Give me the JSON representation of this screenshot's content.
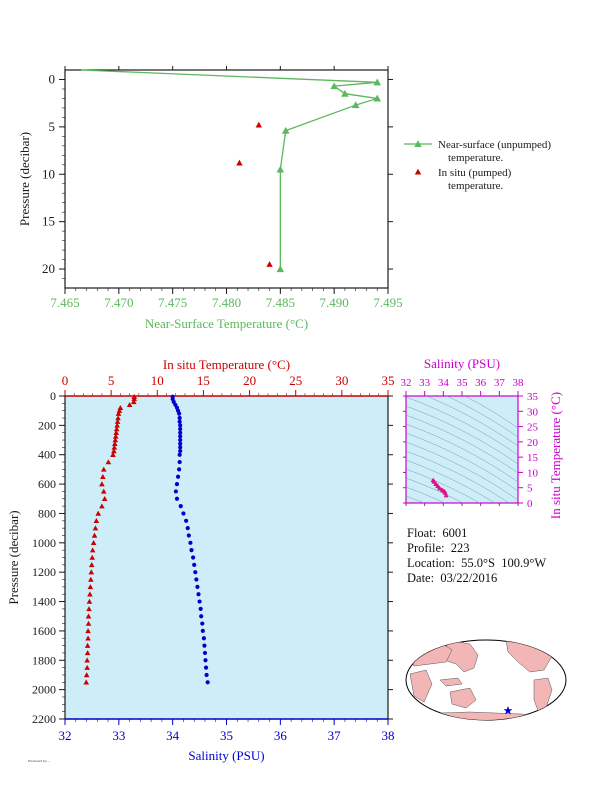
{
  "colors": {
    "green": "#5cb85c",
    "red": "#cc0000",
    "blue": "#0000cc",
    "magenta": "#cc00cc",
    "dark": "#1a1a1a",
    "panel": "#cdeef8"
  },
  "chart_data": [
    {
      "type": "line",
      "xlabel": "Near-Surface Temperature (°C)",
      "ylabel": "Pressure (decibar)",
      "xlim": [
        7.465,
        7.495
      ],
      "ylim": [
        22,
        -1
      ],
      "xticks": [
        "7.465",
        "7.470",
        "7.475",
        "7.480",
        "7.485",
        "7.490",
        "7.495"
      ],
      "yticks": [
        "0",
        "5",
        "10",
        "15",
        "20"
      ],
      "series": [
        {
          "name": "Near-surface (unpumped) temperature.",
          "x": [
            7.4665,
            7.494,
            7.49,
            7.491,
            7.494,
            7.492,
            7.4855,
            7.485,
            7.485
          ],
          "y": [
            -1.0,
            0.3,
            0.7,
            1.5,
            2.0,
            2.7,
            5.4,
            9.5,
            20.0
          ]
        },
        {
          "name": "In situ (pumped) temperature.",
          "x": [
            7.483,
            7.4812,
            7.484
          ],
          "y": [
            4.8,
            8.8,
            19.5
          ]
        }
      ],
      "legend": "right"
    },
    {
      "type": "scatter",
      "ylabel": "Pressure (decibar)",
      "top_axis_label": "In situ Temperature (°C)",
      "bottom_axis_label": "Salinity (PSU)",
      "temp_ticks": [
        "0",
        "5",
        "10",
        "15",
        "20",
        "25",
        "30",
        "35"
      ],
      "sal_ticks": [
        "32",
        "33",
        "34",
        "35",
        "36",
        "37",
        "38"
      ],
      "p_ticks": [
        "0",
        "200",
        "400",
        "600",
        "800",
        "1000",
        "1200",
        "1400",
        "1600",
        "1800",
        "2000",
        "2200"
      ],
      "temperature": {
        "pressure": [
          5,
          20,
          40,
          60,
          80,
          100,
          120,
          150,
          175,
          200,
          225,
          250,
          275,
          300,
          325,
          350,
          375,
          400,
          450,
          500,
          550,
          600,
          650,
          700,
          750,
          800,
          850,
          900,
          950,
          1000,
          1050,
          1100,
          1150,
          1200,
          1250,
          1300,
          1350,
          1400,
          1450,
          1500,
          1550,
          1600,
          1650,
          1700,
          1750,
          1800,
          1850,
          1900,
          1950
        ],
        "temp": [
          7.5,
          7.5,
          7.45,
          7.0,
          6.0,
          5.9,
          5.8,
          5.75,
          5.7,
          5.65,
          5.6,
          5.55,
          5.5,
          5.45,
          5.4,
          5.35,
          5.3,
          5.2,
          4.7,
          4.2,
          4.1,
          4.0,
          4.2,
          4.3,
          4.0,
          3.6,
          3.4,
          3.3,
          3.2,
          3.1,
          3.0,
          2.95,
          2.9,
          2.85,
          2.8,
          2.75,
          2.7,
          2.65,
          2.6,
          2.55,
          2.55,
          2.5,
          2.5,
          2.45,
          2.45,
          2.4,
          2.4,
          2.35,
          2.3
        ]
      },
      "salinity": {
        "pressure": [
          5,
          20,
          40,
          60,
          80,
          100,
          120,
          150,
          175,
          200,
          225,
          250,
          275,
          300,
          325,
          350,
          375,
          400,
          450,
          500,
          550,
          600,
          650,
          700,
          750,
          800,
          850,
          900,
          950,
          1000,
          1050,
          1100,
          1150,
          1200,
          1250,
          1300,
          1350,
          1400,
          1450,
          1500,
          1550,
          1600,
          1650,
          1700,
          1750,
          1800,
          1850,
          1900,
          1950
        ],
        "sal": [
          34.0,
          34.0,
          34.02,
          34.05,
          34.08,
          34.1,
          34.12,
          34.13,
          34.13,
          34.14,
          34.14,
          34.14,
          34.14,
          34.14,
          34.14,
          34.14,
          34.14,
          34.13,
          34.13,
          34.12,
          34.1,
          34.08,
          34.06,
          34.08,
          34.15,
          34.2,
          34.25,
          34.28,
          34.3,
          34.33,
          34.35,
          34.38,
          34.4,
          34.42,
          34.44,
          34.46,
          34.48,
          34.5,
          34.52,
          34.53,
          34.55,
          34.56,
          34.58,
          34.59,
          34.6,
          34.61,
          34.62,
          34.63,
          34.65
        ]
      },
      "xlim_salinity": [
        32,
        38
      ],
      "xlim_temperature": [
        0,
        35
      ],
      "ylim": [
        2200,
        0
      ]
    },
    {
      "type": "scatter",
      "top_axis_label": "Salinity (PSU)",
      "right_axis_label": "In situ Temperature (°C)",
      "sal_ticks": [
        "32",
        "33",
        "34",
        "35",
        "36",
        "37",
        "38"
      ],
      "temp_ticks": [
        "0",
        "5",
        "10",
        "15",
        "20",
        "25",
        "30",
        "35"
      ],
      "sal": [
        33.45,
        33.5,
        33.6,
        33.7,
        33.8,
        33.95,
        34.05,
        34.1,
        34.15
      ],
      "temp": [
        7.5,
        7.0,
        6.2,
        5.5,
        4.8,
        4.2,
        3.8,
        3.4,
        2.5
      ]
    }
  ],
  "info": {
    "float": "Float:  6001",
    "profile": "Profile:  223",
    "location": "Location:  55.0°S  100.9°W",
    "date": "Date:  03/22/2016"
  },
  "footnote": "Produced by ..."
}
